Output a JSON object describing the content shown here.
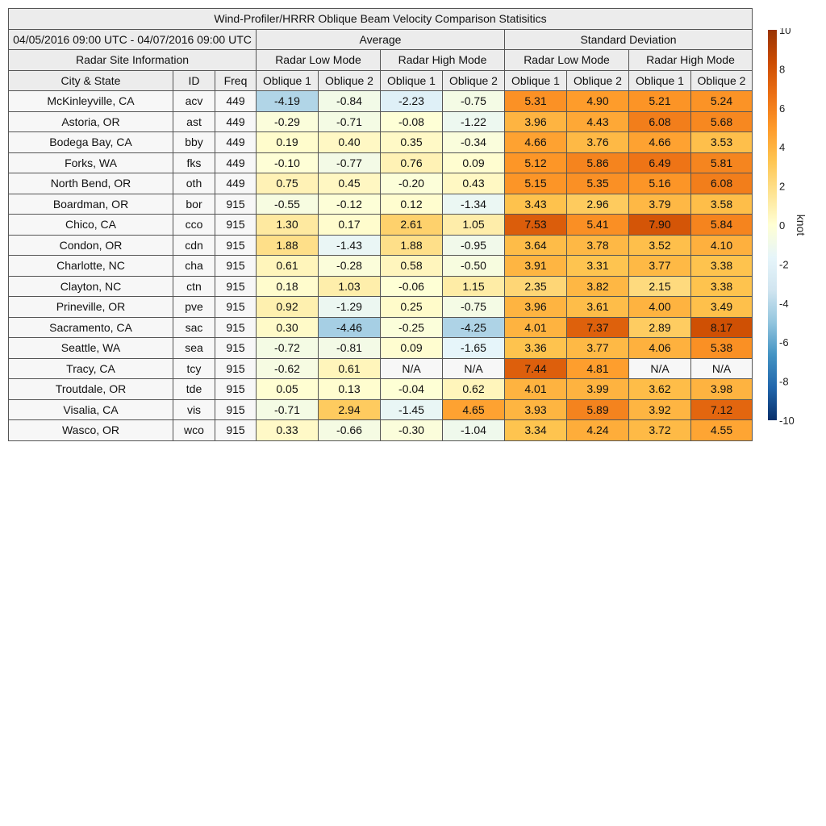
{
  "chart_data": {
    "type": "heatmap",
    "title": "Wind-Profiler/HRRR Oblique Beam Velocity Comparison Statisitics",
    "period": "04/05/2016 09:00 UTC - 04/07/2016 09:00 UTC",
    "section_avg": "Average",
    "section_std": "Standard Deviation",
    "site_info_label": "Radar Site Information",
    "mode_low": "Radar Low Mode",
    "mode_high": "Radar High Mode",
    "col_city": "City & State",
    "col_id": "ID",
    "col_freq": "Freq",
    "col_obl1": "Oblique 1",
    "col_obl2": "Oblique 2",
    "colorbar": {
      "label": "knot",
      "min": -10,
      "max": 10,
      "ticks": [
        "10",
        "8",
        "6",
        "4",
        "2",
        "0",
        "-2",
        "-4",
        "-6",
        "-8",
        "-10"
      ],
      "colors": [
        "#08306b",
        "#2166ac",
        "#4393c3",
        "#92c5de",
        "#d1e5f0",
        "#e6f5fa",
        "#ffffd4",
        "#fee391",
        "#fec44f",
        "#fe9929",
        "#ec7014",
        "#cc4c02",
        "#993404"
      ]
    },
    "missing_label": "N/A",
    "rows": [
      {
        "city": "McKinleyville, CA",
        "id": "acv",
        "freq": "449",
        "avg": [
          -4.19,
          -0.84,
          -2.23,
          -0.75
        ],
        "std": [
          5.31,
          4.9,
          5.21,
          5.24
        ]
      },
      {
        "city": "Astoria, OR",
        "id": "ast",
        "freq": "449",
        "avg": [
          -0.29,
          -0.71,
          -0.08,
          -1.22
        ],
        "std": [
          3.96,
          4.43,
          6.08,
          5.68
        ]
      },
      {
        "city": "Bodega Bay, CA",
        "id": "bby",
        "freq": "449",
        "avg": [
          0.19,
          0.4,
          0.35,
          -0.34
        ],
        "std": [
          4.66,
          3.76,
          4.66,
          3.53
        ]
      },
      {
        "city": "Forks, WA",
        "id": "fks",
        "freq": "449",
        "avg": [
          -0.1,
          -0.77,
          0.76,
          0.09
        ],
        "std": [
          5.12,
          5.86,
          6.49,
          5.81
        ]
      },
      {
        "city": "North Bend, OR",
        "id": "oth",
        "freq": "449",
        "avg": [
          0.75,
          0.45,
          -0.2,
          0.43
        ],
        "std": [
          5.15,
          5.35,
          5.16,
          6.08
        ]
      },
      {
        "city": "Boardman, OR",
        "id": "bor",
        "freq": "915",
        "avg": [
          -0.55,
          -0.12,
          0.12,
          -1.34
        ],
        "std": [
          3.43,
          2.96,
          3.79,
          3.58
        ]
      },
      {
        "city": "Chico, CA",
        "id": "cco",
        "freq": "915",
        "avg": [
          1.3,
          0.17,
          2.61,
          1.05
        ],
        "std": [
          7.53,
          5.41,
          7.9,
          5.84
        ]
      },
      {
        "city": "Condon, OR",
        "id": "cdn",
        "freq": "915",
        "avg": [
          1.88,
          -1.43,
          1.88,
          -0.95
        ],
        "std": [
          3.64,
          3.78,
          3.52,
          4.1
        ]
      },
      {
        "city": "Charlotte, NC",
        "id": "cha",
        "freq": "915",
        "avg": [
          0.61,
          -0.28,
          0.58,
          -0.5
        ],
        "std": [
          3.91,
          3.31,
          3.77,
          3.38
        ]
      },
      {
        "city": "Clayton, NC",
        "id": "ctn",
        "freq": "915",
        "avg": [
          0.18,
          1.03,
          -0.06,
          1.15
        ],
        "std": [
          2.35,
          3.82,
          2.15,
          3.38
        ]
      },
      {
        "city": "Prineville, OR",
        "id": "pve",
        "freq": "915",
        "avg": [
          0.92,
          -1.29,
          0.25,
          -0.75
        ],
        "std": [
          3.96,
          3.61,
          4.0,
          3.49
        ]
      },
      {
        "city": "Sacramento, CA",
        "id": "sac",
        "freq": "915",
        "avg": [
          0.3,
          -4.46,
          -0.25,
          -4.25
        ],
        "std": [
          4.01,
          7.37,
          2.89,
          8.17
        ]
      },
      {
        "city": "Seattle, WA",
        "id": "sea",
        "freq": "915",
        "avg": [
          -0.72,
          -0.81,
          0.09,
          -1.65
        ],
        "std": [
          3.36,
          3.77,
          4.06,
          5.38
        ]
      },
      {
        "city": "Tracy, CA",
        "id": "tcy",
        "freq": "915",
        "avg": [
          -0.62,
          0.61,
          null,
          null
        ],
        "std": [
          7.44,
          4.81,
          null,
          null
        ]
      },
      {
        "city": "Troutdale, OR",
        "id": "tde",
        "freq": "915",
        "avg": [
          0.05,
          0.13,
          -0.04,
          0.62
        ],
        "std": [
          4.01,
          3.99,
          3.62,
          3.98
        ]
      },
      {
        "city": "Visalia, CA",
        "id": "vis",
        "freq": "915",
        "avg": [
          -0.71,
          2.94,
          -1.45,
          4.65
        ],
        "std": [
          3.93,
          5.89,
          3.92,
          7.12
        ]
      },
      {
        "city": "Wasco, OR",
        "id": "wco",
        "freq": "915",
        "avg": [
          0.33,
          -0.66,
          -0.3,
          -1.04
        ],
        "std": [
          3.34,
          4.24,
          3.72,
          4.55
        ]
      }
    ]
  }
}
